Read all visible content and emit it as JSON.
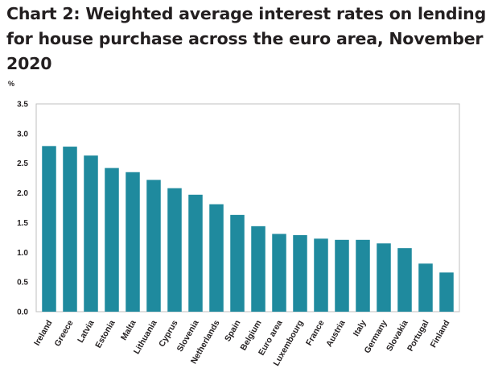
{
  "title": "Chart 2: Weighted average interest rates on lending for house purchase across the euro area, November 2020",
  "chart_data": {
    "type": "bar",
    "title": "Chart 2: Weighted average interest rates on lending for house purchase across the euro area, November 2020",
    "ylabel": "%",
    "xlabel": "",
    "ylim": [
      0,
      3.5
    ],
    "yticks": [
      "0.0",
      "0.5",
      "1.0",
      "1.5",
      "2.0",
      "2.5",
      "3.0",
      "3.5"
    ],
    "grid": false,
    "legend": "none",
    "bar_color": "#1f8a9e",
    "categories": [
      "Ireland",
      "Greece",
      "Latvia",
      "Estonia",
      "Malta",
      "Lithuania",
      "Cyprus",
      "Slovenia",
      "Netherlands",
      "Spain",
      "Belgium",
      "Euro area",
      "Luxembourg",
      "France",
      "Austria",
      "Italy",
      "Germany",
      "Slovakia",
      "Portugal",
      "Finland"
    ],
    "values": [
      2.79,
      2.78,
      2.63,
      2.42,
      2.35,
      2.22,
      2.08,
      1.97,
      1.81,
      1.63,
      1.44,
      1.31,
      1.29,
      1.23,
      1.21,
      1.21,
      1.15,
      1.07,
      0.81,
      0.66
    ]
  }
}
